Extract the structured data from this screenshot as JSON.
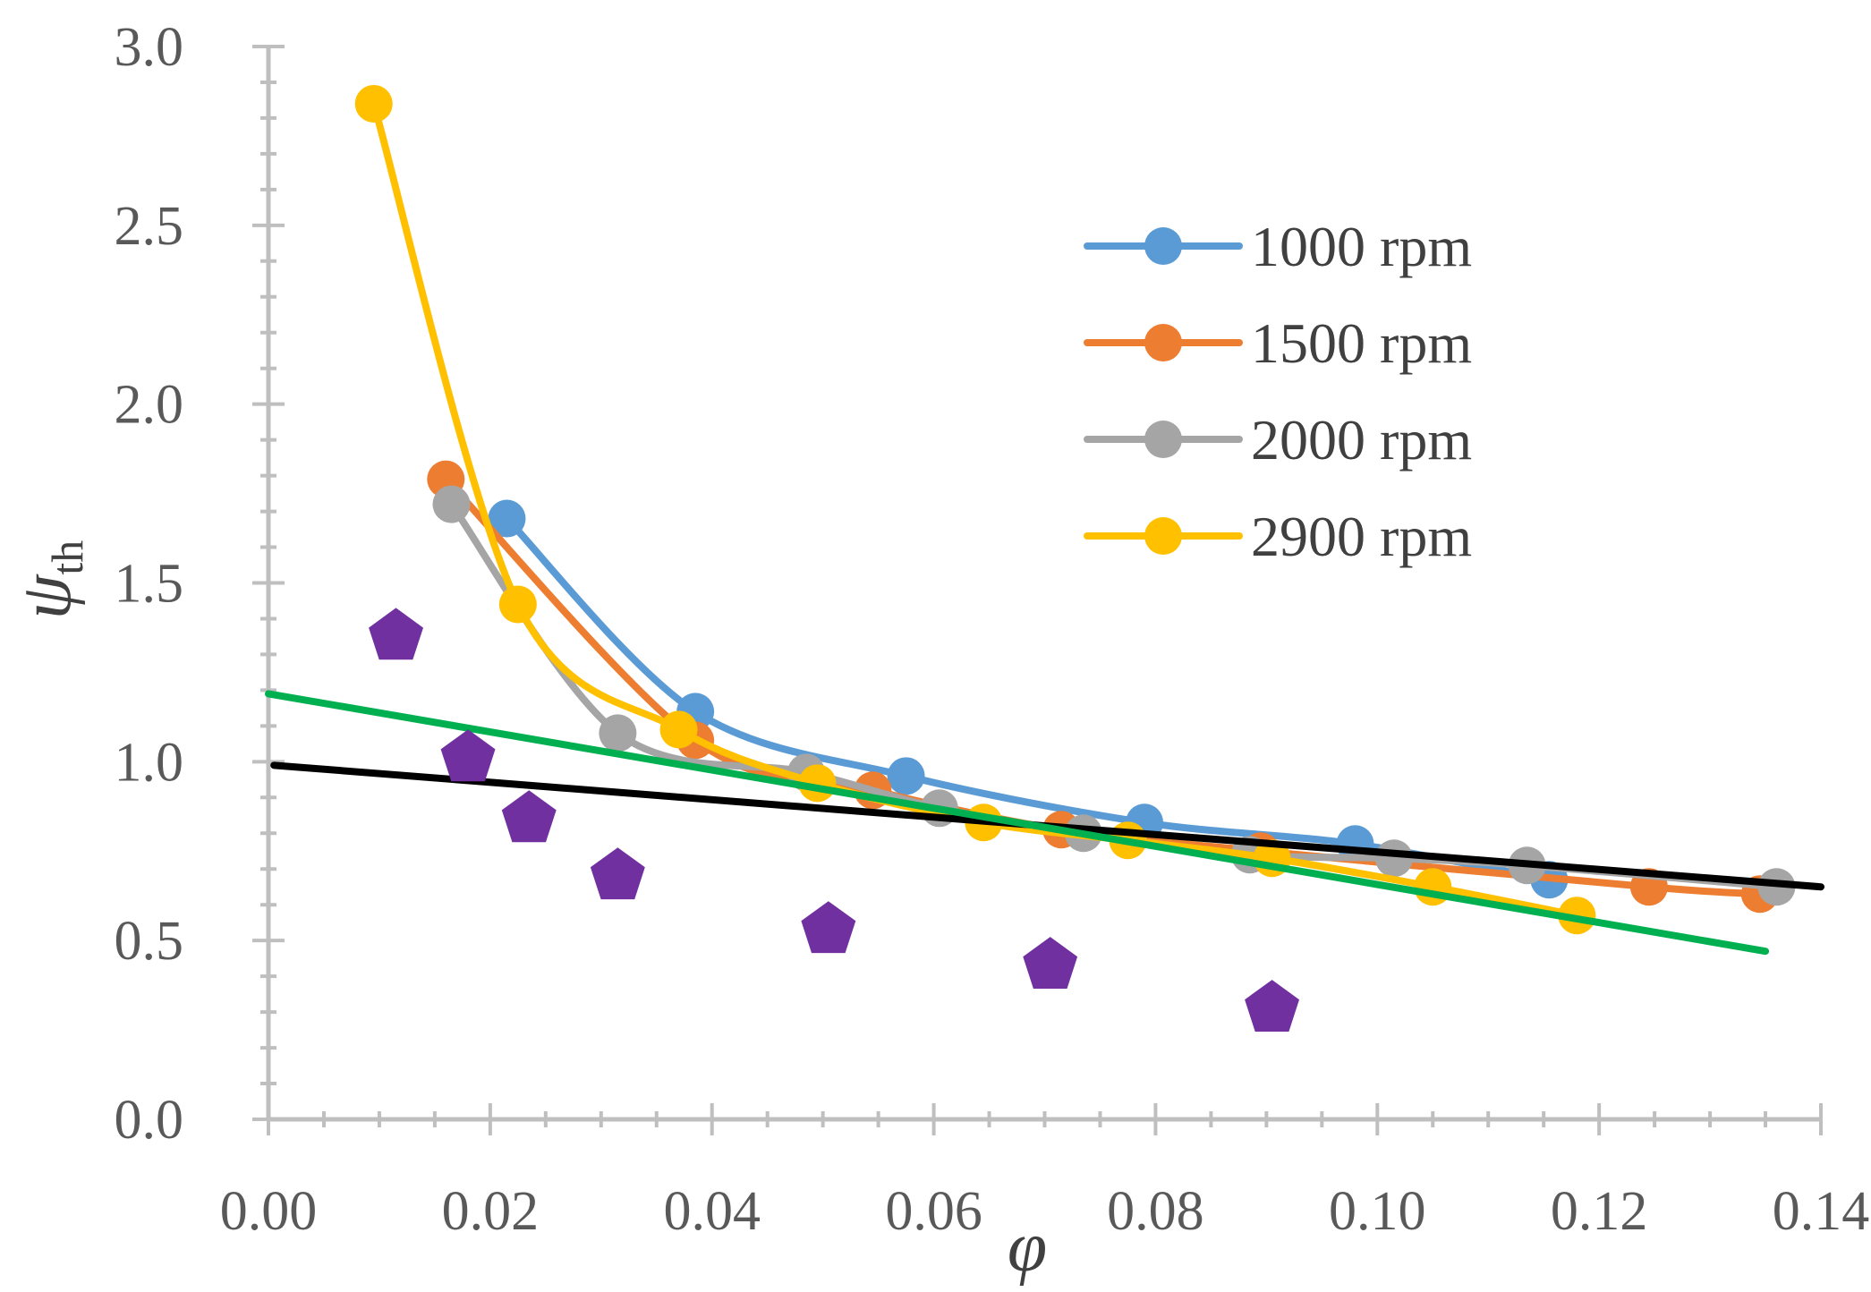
{
  "chart_data": {
    "type": "line",
    "title": "",
    "xlabel": "φ",
    "ylabel_main": "ψ",
    "ylabel_sub": "th",
    "xlim": [
      0,
      0.14
    ],
    "ylim": [
      0,
      3.0
    ],
    "x_ticks": [
      "0.00",
      "0.02",
      "0.04",
      "0.06",
      "0.08",
      "0.10",
      "0.12",
      "0.14"
    ],
    "y_ticks": [
      "0.0",
      "0.5",
      "1.0",
      "1.5",
      "2.0",
      "2.5",
      "3.0"
    ],
    "legend_position": "top-right",
    "series": [
      {
        "name": "1000 rpm",
        "color": "#5B9BD5",
        "x": [
          0.0215,
          0.0385,
          0.0575,
          0.079,
          0.098,
          0.1155
        ],
        "y": [
          1.68,
          1.14,
          0.96,
          0.83,
          0.77,
          0.67
        ]
      },
      {
        "name": "1500 rpm",
        "color": "#ED7D31",
        "x": [
          0.016,
          0.0385,
          0.0545,
          0.0715,
          0.0895,
          0.1245,
          0.1345
        ],
        "y": [
          1.79,
          1.06,
          0.92,
          0.81,
          0.75,
          0.65,
          0.63
        ]
      },
      {
        "name": "2000 rpm",
        "color": "#A5A5A5",
        "x": [
          0.0165,
          0.0315,
          0.0485,
          0.0605,
          0.0735,
          0.0885,
          0.1015,
          0.1135,
          0.136
        ],
        "y": [
          1.72,
          1.08,
          0.97,
          0.87,
          0.8,
          0.74,
          0.73,
          0.71,
          0.65
        ]
      },
      {
        "name": "2900 rpm",
        "color": "#FFC000",
        "x": [
          0.0095,
          0.0225,
          0.037,
          0.0495,
          0.0645,
          0.0775,
          0.0905,
          0.105,
          0.118
        ],
        "y": [
          2.84,
          1.44,
          1.09,
          0.94,
          0.83,
          0.78,
          0.73,
          0.65,
          0.57
        ]
      }
    ],
    "markers": {
      "name": "pentagon points",
      "color": "#7030A0",
      "x": [
        0.0115,
        0.018,
        0.0235,
        0.0315,
        0.0505,
        0.0705,
        0.0905
      ],
      "y": [
        1.35,
        1.01,
        0.84,
        0.68,
        0.53,
        0.43,
        0.31
      ]
    },
    "lines": [
      {
        "name": "black trend line",
        "color": "#000000",
        "x": [
          0.0005,
          0.14
        ],
        "y": [
          0.99,
          0.65
        ]
      },
      {
        "name": "green trend line",
        "color": "#00B050",
        "x": [
          0.0,
          0.135
        ],
        "y": [
          1.19,
          0.47
        ]
      }
    ]
  }
}
